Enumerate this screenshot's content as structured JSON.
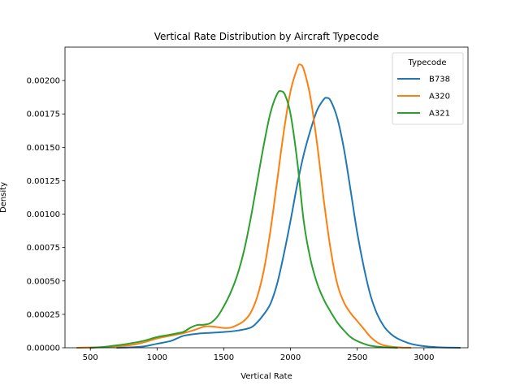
{
  "chart_data": {
    "type": "line",
    "title": "Vertical Rate Distribution by Aircraft Typecode",
    "xlabel": "Vertical Rate",
    "ylabel": "Density",
    "xlim": [
      310,
      3330
    ],
    "ylim": [
      0,
      0.00225
    ],
    "xticks": [
      500,
      1000,
      1500,
      2000,
      2500,
      3000
    ],
    "xtick_labels": [
      "500",
      "1000",
      "1500",
      "2000",
      "2500",
      "3000"
    ],
    "yticks": [
      0,
      0.00025,
      0.0005,
      0.00075,
      0.001,
      0.00125,
      0.0015,
      0.00175,
      0.002
    ],
    "ytick_labels": [
      "0.00000",
      "0.00025",
      "0.00050",
      "0.00075",
      "0.00100",
      "0.00125",
      "0.00150",
      "0.00175",
      "0.00200"
    ],
    "grid": false,
    "legend": {
      "title": "Typecode",
      "placement": "top-right"
    },
    "series": [
      {
        "name": "B738",
        "color": "#1f77b4",
        "points": [
          [
            700,
            0
          ],
          [
            800,
            3e-06
          ],
          [
            900,
            1e-05
          ],
          [
            1000,
            3e-05
          ],
          [
            1100,
            5e-05
          ],
          [
            1150,
            7e-05
          ],
          [
            1200,
            9e-05
          ],
          [
            1300,
            0.000105
          ],
          [
            1400,
            0.000112
          ],
          [
            1500,
            0.000118
          ],
          [
            1600,
            0.000128
          ],
          [
            1700,
            0.00015
          ],
          [
            1750,
            0.00019
          ],
          [
            1800,
            0.00025
          ],
          [
            1850,
            0.00033
          ],
          [
            1900,
            0.00048
          ],
          [
            1950,
            0.0007
          ],
          [
            2000,
            0.00095
          ],
          [
            2050,
            0.00122
          ],
          [
            2100,
            0.00145
          ],
          [
            2150,
            0.00163
          ],
          [
            2200,
            0.00178
          ],
          [
            2250,
            0.00186
          ],
          [
            2270,
            0.00187
          ],
          [
            2300,
            0.00185
          ],
          [
            2350,
            0.00172
          ],
          [
            2400,
            0.00149
          ],
          [
            2450,
            0.00118
          ],
          [
            2500,
            0.00086
          ],
          [
            2550,
            0.0006
          ],
          [
            2600,
            0.00039
          ],
          [
            2650,
            0.00025
          ],
          [
            2700,
            0.00016
          ],
          [
            2750,
            0.000105
          ],
          [
            2800,
            7e-05
          ],
          [
            2900,
            3e-05
          ],
          [
            3000,
            1.2e-05
          ],
          [
            3100,
            4e-06
          ],
          [
            3270,
            0
          ]
        ]
      },
      {
        "name": "A320",
        "color": "#ff7f0e",
        "points": [
          [
            400,
            0
          ],
          [
            600,
            5e-06
          ],
          [
            800,
            2e-05
          ],
          [
            900,
            4e-05
          ],
          [
            1000,
            7e-05
          ],
          [
            1100,
            9e-05
          ],
          [
            1200,
            0.00011
          ],
          [
            1300,
            0.00014
          ],
          [
            1350,
            0.000158
          ],
          [
            1400,
            0.00016
          ],
          [
            1450,
            0.000155
          ],
          [
            1500,
            0.000148
          ],
          [
            1550,
            0.00015
          ],
          [
            1600,
            0.00017
          ],
          [
            1650,
            0.0002
          ],
          [
            1700,
            0.00026
          ],
          [
            1750,
            0.00038
          ],
          [
            1800,
            0.00058
          ],
          [
            1850,
            0.00088
          ],
          [
            1900,
            0.00125
          ],
          [
            1950,
            0.00162
          ],
          [
            2000,
            0.00192
          ],
          [
            2050,
            0.00209
          ],
          [
            2070,
            0.00212
          ],
          [
            2100,
            0.00208
          ],
          [
            2150,
            0.00187
          ],
          [
            2200,
            0.00152
          ],
          [
            2250,
            0.0011
          ],
          [
            2300,
            0.00074
          ],
          [
            2350,
            0.00048
          ],
          [
            2400,
            0.00034
          ],
          [
            2450,
            0.00026
          ],
          [
            2500,
            0.0002
          ],
          [
            2550,
            0.00014
          ],
          [
            2600,
            8e-05
          ],
          [
            2650,
            4e-05
          ],
          [
            2700,
            1.8e-05
          ],
          [
            2800,
            4e-06
          ],
          [
            2900,
            0
          ]
        ]
      },
      {
        "name": "A321",
        "color": "#2ca02c",
        "points": [
          [
            500,
            0
          ],
          [
            600,
            6e-06
          ],
          [
            700,
            1.8e-05
          ],
          [
            800,
            3.3e-05
          ],
          [
            900,
            5.2e-05
          ],
          [
            1000,
            8e-05
          ],
          [
            1100,
            9.8e-05
          ],
          [
            1150,
            0.000108
          ],
          [
            1200,
            0.00012
          ],
          [
            1250,
            0.00015
          ],
          [
            1300,
            0.00017
          ],
          [
            1350,
            0.000172
          ],
          [
            1400,
            0.000185
          ],
          [
            1450,
            0.00023
          ],
          [
            1500,
            0.00031
          ],
          [
            1550,
            0.00041
          ],
          [
            1600,
            0.00054
          ],
          [
            1650,
            0.00072
          ],
          [
            1700,
            0.00096
          ],
          [
            1750,
            0.00124
          ],
          [
            1800,
            0.00152
          ],
          [
            1850,
            0.00176
          ],
          [
            1900,
            0.0019
          ],
          [
            1930,
            0.00192
          ],
          [
            1960,
            0.00189
          ],
          [
            2000,
            0.00175
          ],
          [
            2050,
            0.0014
          ],
          [
            2100,
            0.00094
          ],
          [
            2150,
            0.00066
          ],
          [
            2200,
            0.00048
          ],
          [
            2250,
            0.00036
          ],
          [
            2300,
            0.00027
          ],
          [
            2350,
            0.00019
          ],
          [
            2400,
            0.00013
          ],
          [
            2450,
            8e-05
          ],
          [
            2500,
            5e-05
          ],
          [
            2550,
            3e-05
          ],
          [
            2600,
            1.5e-05
          ],
          [
            2700,
            4e-06
          ],
          [
            2800,
            0
          ]
        ]
      }
    ]
  }
}
